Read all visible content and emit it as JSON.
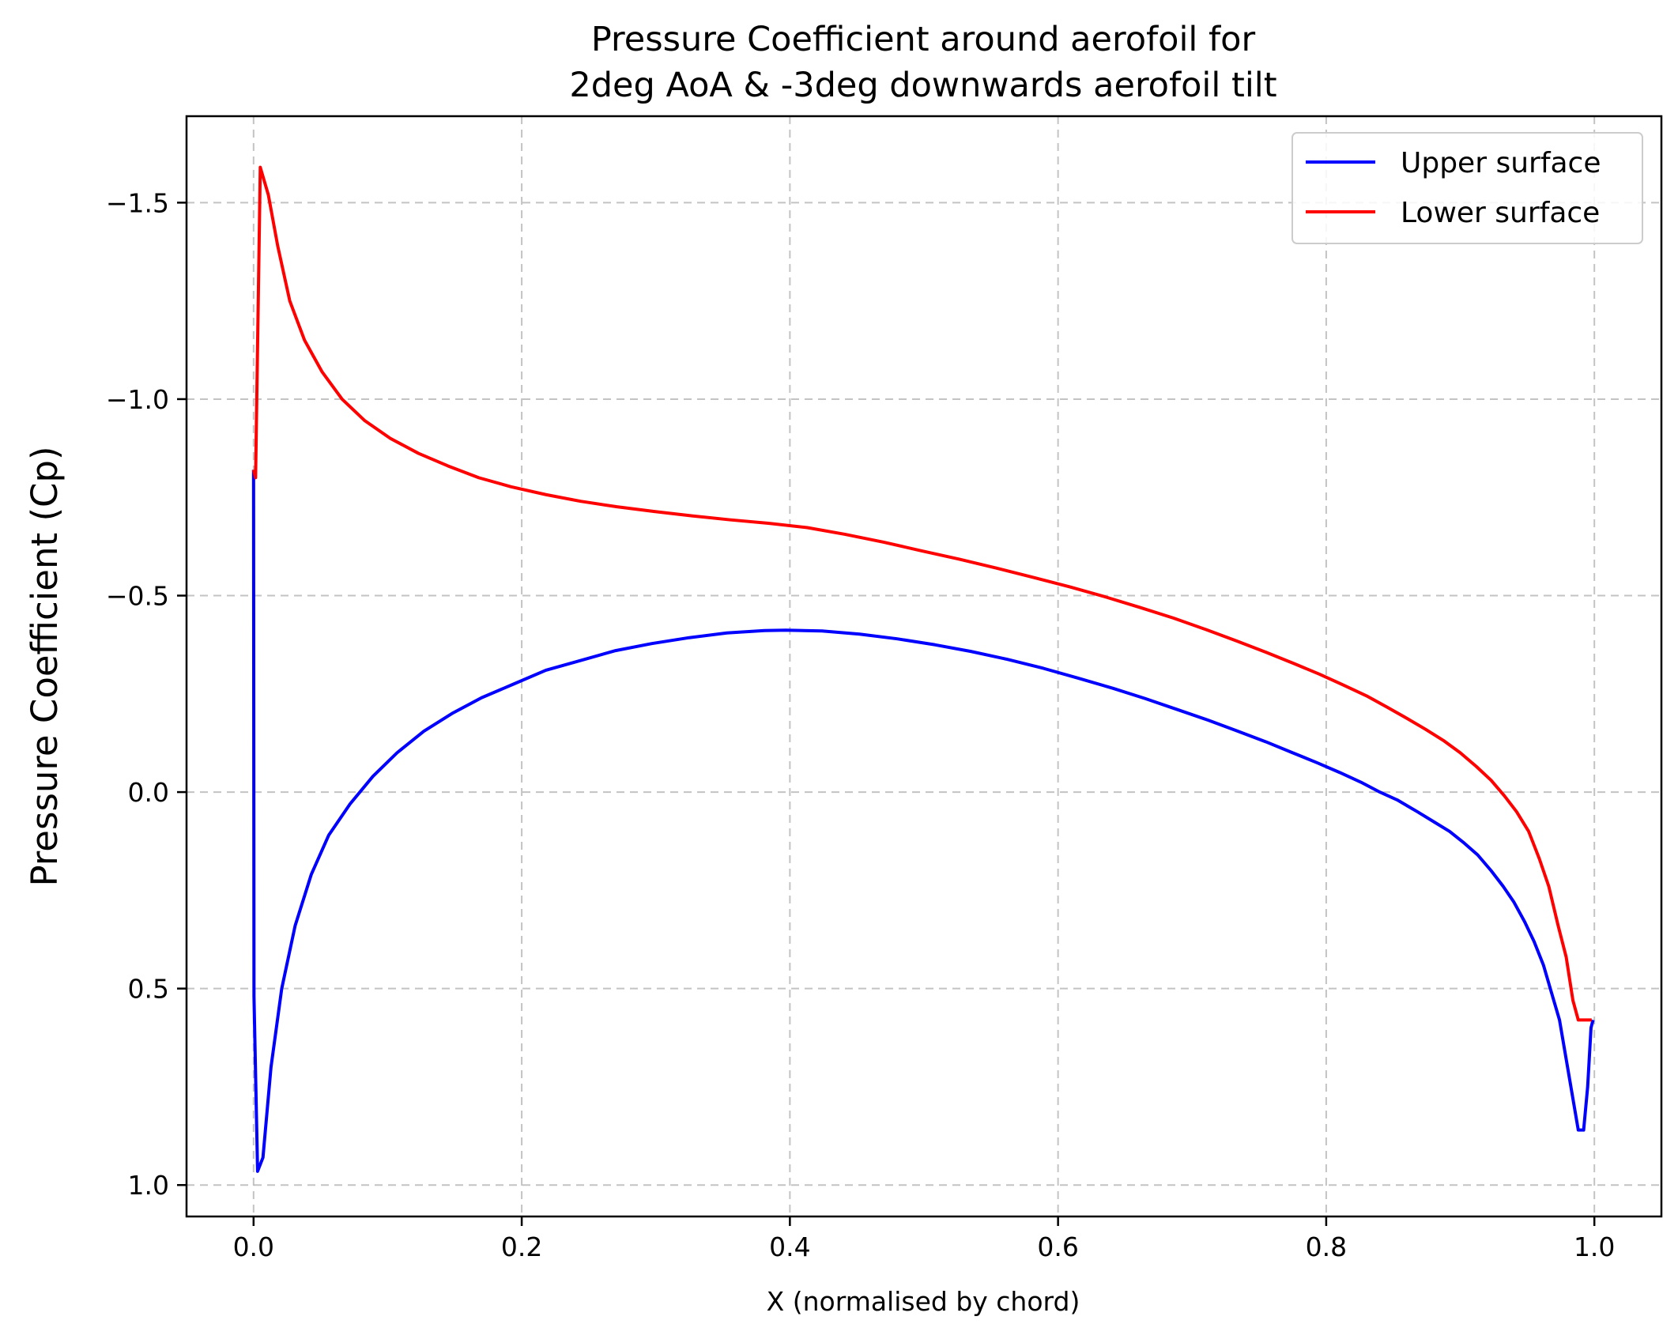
{
  "chart_data": {
    "type": "line",
    "title": [
      "Pressure Coefficient around aerofoil for",
      "2deg AoA & -3deg downwards aerofoil tilt"
    ],
    "xlabel": "X (normalised by chord)",
    "ylabel": "Pressure Coefficient (Cp)",
    "xlim": [
      -0.05,
      1.05
    ],
    "ylim": [
      1.08,
      -1.72
    ],
    "y_inverted": true,
    "grid": true,
    "legend_position": "top-right",
    "xticks": [
      0.0,
      0.2,
      0.4,
      0.6,
      0.8,
      1.0
    ],
    "xtick_labels": [
      "0.0",
      "0.2",
      "0.4",
      "0.6",
      "0.8",
      "1.0"
    ],
    "yticks": [
      -1.5,
      -1.0,
      -0.5,
      0.0,
      0.5,
      1.0
    ],
    "ytick_labels": [
      "−1.5",
      "−1.0",
      "−0.5",
      "0.0",
      "0.5",
      "1.0"
    ],
    "series": [
      {
        "name": "Upper surface",
        "color": "#0000ff",
        "x": [
          0.0,
          0.0003,
          0.003,
          0.007,
          0.013,
          0.021,
          0.031,
          0.043,
          0.056,
          0.072,
          0.089,
          0.107,
          0.127,
          0.148,
          0.17,
          0.194,
          0.218,
          0.244,
          0.27,
          0.297,
          0.325,
          0.353,
          0.381,
          0.397,
          0.424,
          0.452,
          0.48,
          0.508,
          0.535,
          0.562,
          0.589,
          0.615,
          0.641,
          0.665,
          0.689,
          0.712,
          0.734,
          0.755,
          0.775,
          0.793,
          0.81,
          0.826,
          0.84,
          0.853,
          0.868,
          0.88,
          0.892,
          0.903,
          0.913,
          0.923,
          0.932,
          0.94,
          0.948,
          0.955,
          0.962,
          0.968,
          0.974,
          0.979,
          0.984,
          0.988,
          0.992,
          0.995,
          0.9975,
          0.999
        ],
        "y": [
          -0.82,
          0.52,
          0.965,
          0.93,
          0.7,
          0.5,
          0.34,
          0.21,
          0.11,
          0.03,
          -0.04,
          -0.1,
          -0.155,
          -0.2,
          -0.24,
          -0.275,
          -0.31,
          -0.335,
          -0.36,
          -0.378,
          -0.393,
          -0.405,
          -0.411,
          -0.412,
          -0.41,
          -0.402,
          -0.39,
          -0.375,
          -0.358,
          -0.338,
          -0.315,
          -0.29,
          -0.264,
          -0.238,
          -0.21,
          -0.183,
          -0.155,
          -0.128,
          -0.1,
          -0.075,
          -0.05,
          -0.025,
          0.0,
          0.02,
          0.05,
          0.075,
          0.1,
          0.13,
          0.16,
          0.2,
          0.24,
          0.28,
          0.33,
          0.38,
          0.44,
          0.51,
          0.58,
          0.68,
          0.78,
          0.86,
          0.86,
          0.75,
          0.6,
          0.58
        ]
      },
      {
        "name": "Lower surface",
        "color": "#ff0000",
        "x": [
          0.0,
          0.0015,
          0.005,
          0.011,
          0.018,
          0.027,
          0.038,
          0.051,
          0.066,
          0.083,
          0.102,
          0.123,
          0.145,
          0.168,
          0.192,
          0.218,
          0.244,
          0.271,
          0.299,
          0.327,
          0.355,
          0.384,
          0.413,
          0.441,
          0.47,
          0.498,
          0.526,
          0.554,
          0.582,
          0.609,
          0.635,
          0.661,
          0.686,
          0.71,
          0.733,
          0.755,
          0.776,
          0.795,
          0.813,
          0.83,
          0.845,
          0.86,
          0.874,
          0.888,
          0.9,
          0.912,
          0.923,
          0.933,
          0.942,
          0.951,
          0.959,
          0.966,
          0.973,
          0.979,
          0.984,
          0.988,
          0.992,
          0.995,
          0.998
        ],
        "y": [
          -0.82,
          -0.8,
          -1.59,
          -1.52,
          -1.39,
          -1.25,
          -1.15,
          -1.07,
          -1.0,
          -0.945,
          -0.9,
          -0.862,
          -0.83,
          -0.8,
          -0.777,
          -0.757,
          -0.74,
          -0.726,
          -0.714,
          -0.703,
          -0.693,
          -0.684,
          -0.673,
          -0.656,
          -0.636,
          -0.614,
          -0.593,
          -0.57,
          -0.546,
          -0.522,
          -0.497,
          -0.47,
          -0.443,
          -0.414,
          -0.385,
          -0.356,
          -0.327,
          -0.3,
          -0.272,
          -0.245,
          -0.217,
          -0.188,
          -0.16,
          -0.13,
          -0.1,
          -0.065,
          -0.03,
          0.01,
          0.05,
          0.1,
          0.17,
          0.24,
          0.34,
          0.42,
          0.53,
          0.58,
          0.58,
          0.58,
          0.58
        ]
      }
    ]
  }
}
